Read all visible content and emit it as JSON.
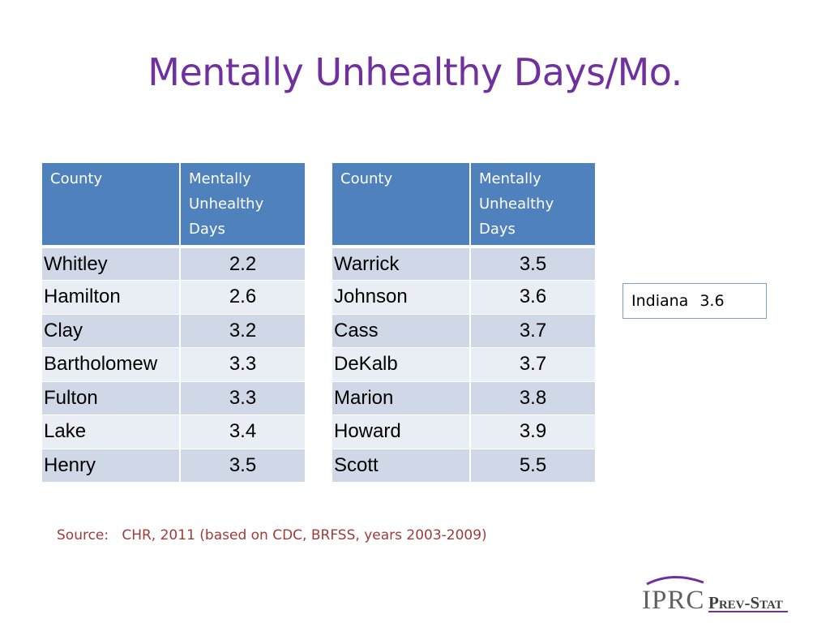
{
  "slide": {
    "title": "Mentally Unhealthy Days/Mo.",
    "source_label": "Source:",
    "source_text": "CHR, 2011 (based on CDC, BRFSS, years 2003-2009)"
  },
  "table_header": {
    "county": "County",
    "metric_line1": "Mentally",
    "metric_line2": "Unhealthy",
    "metric_line3": "Days"
  },
  "table_left": {
    "rows": [
      {
        "county": "Whitley",
        "value": "2.2"
      },
      {
        "county": "Hamilton",
        "value": "2.6"
      },
      {
        "county": "Clay",
        "value": "3.2"
      },
      {
        "county": "Bartholomew",
        "value": "3.3"
      },
      {
        "county": "Fulton",
        "value": "3.3"
      },
      {
        "county": "Lake",
        "value": "3.4"
      },
      {
        "county": "Henry",
        "value": "3.5"
      }
    ]
  },
  "table_right": {
    "rows": [
      {
        "county": "Warrick",
        "value": "3.5"
      },
      {
        "county": "Johnson",
        "value": "3.6"
      },
      {
        "county": "Cass",
        "value": "3.7"
      },
      {
        "county": "DeKalb",
        "value": "3.7"
      },
      {
        "county": "Marion",
        "value": "3.8"
      },
      {
        "county": "Howard",
        "value": "3.9"
      },
      {
        "county": "Scott",
        "value": "5.5"
      }
    ]
  },
  "state": {
    "name": "Indiana",
    "value": "3.6"
  },
  "logo": {
    "org": "IPRC",
    "product": "Prev-Stat"
  },
  "colors": {
    "title": "#7030a0",
    "header_bg": "#4f81bd",
    "row_band_dark": "#d0d8e8",
    "row_band_light": "#e9edf4",
    "source_text": "#a33a3a",
    "logo_purple": "#7030a0"
  }
}
